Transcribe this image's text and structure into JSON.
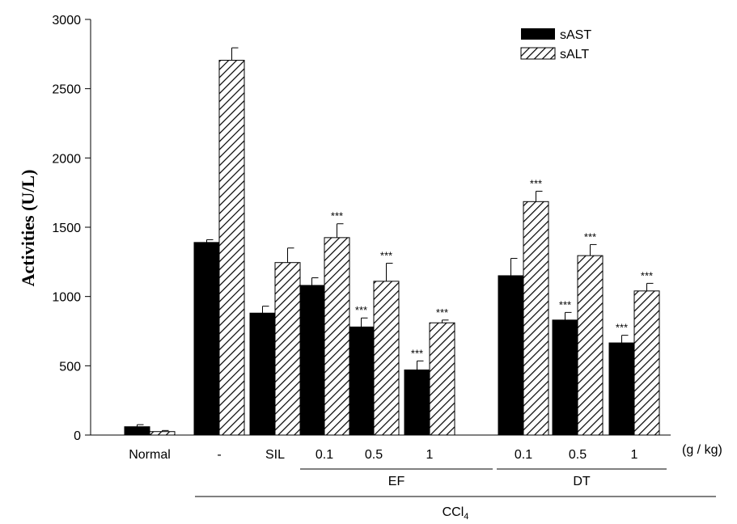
{
  "chart_data": {
    "type": "bar",
    "title": "",
    "ylabel": "Activities (U/L)",
    "xlabel": "",
    "ylim": [
      0,
      3000
    ],
    "yticks": [
      0,
      500,
      1000,
      1500,
      2000,
      2500,
      3000
    ],
    "grid": false,
    "legend_position": "top-right",
    "categories": [
      "Normal",
      "-",
      "SIL",
      "0.1",
      "0.5",
      "1",
      "0.1",
      "0.5",
      "1"
    ],
    "x_unit_label": "(g / kg)",
    "groups": [
      {
        "label": "EF",
        "start": 3,
        "end": 5
      },
      {
        "label": "DT",
        "start": 6,
        "end": 8
      }
    ],
    "treatment": {
      "label": "CCl",
      "subscript": "4",
      "start": 1,
      "end": 8
    },
    "series": [
      {
        "name": "sAST",
        "fill": "#000000",
        "values": [
          60,
          1390,
          880,
          1080,
          780,
          470,
          1150,
          830,
          665
        ],
        "errors": [
          15,
          20,
          50,
          55,
          65,
          65,
          125,
          55,
          55
        ],
        "significance": [
          "",
          "",
          "",
          "",
          "***",
          "***",
          "",
          "***",
          "***"
        ]
      },
      {
        "name": "sALT",
        "fill": "hatched",
        "values": [
          25,
          2705,
          1245,
          1425,
          1110,
          810,
          1685,
          1295,
          1040
        ],
        "errors": [
          8,
          90,
          105,
          100,
          130,
          20,
          75,
          80,
          55
        ],
        "significance": [
          "",
          "",
          "",
          "***",
          "***",
          "***",
          "***",
          "***",
          "***"
        ]
      }
    ]
  }
}
